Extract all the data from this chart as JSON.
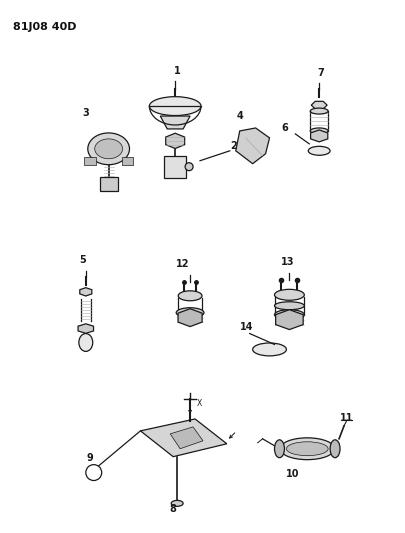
{
  "title": "81J08 40D",
  "background_color": "#ffffff",
  "line_color": "#1a1a1a",
  "fig_width": 4.05,
  "fig_height": 5.33,
  "dpi": 100
}
